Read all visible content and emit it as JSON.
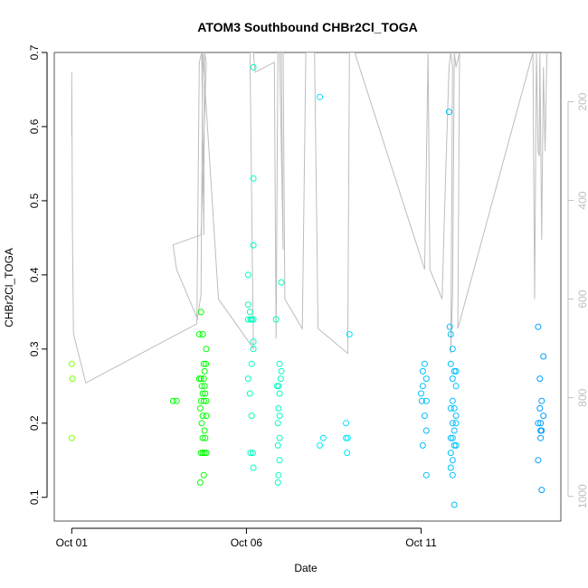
{
  "chart_data": {
    "type": "scatter",
    "title": "ATOM3 Southbound CHBr2Cl_TOGA",
    "xlabel": "Date",
    "ylabel": "CHBr2Cl_TOGA",
    "x_unit": "day of October 2017",
    "xlim": [
      0.5,
      15.0
    ],
    "ylim": [
      0.068,
      0.7
    ],
    "x_ticks": [
      {
        "value": 1,
        "label": "Oct 01"
      },
      {
        "value": 6,
        "label": "Oct 06"
      },
      {
        "value": 11,
        "label": "Oct 11"
      }
    ],
    "y_ticks": [
      0.1,
      0.2,
      0.3,
      0.4,
      0.5,
      0.6,
      0.7
    ],
    "y2_ticks": [
      200,
      400,
      600,
      800,
      1000
    ],
    "y2_lim": [
      1050,
      100
    ],
    "grid": false,
    "legend": "none",
    "colors": {
      "altitude_line": "#bdbdbd",
      "axes": "#555555",
      "point_color_scale": [
        "#7fff00",
        "#00ff00",
        "#00ffbf",
        "#00e5ff",
        "#00bfff",
        "#009fff"
      ]
    },
    "series": [
      {
        "values": [
          [
            1.0,
            0.28
          ],
          [
            1.02,
            0.26
          ],
          [
            1.0,
            0.18
          ],
          [
            3.9,
            0.23
          ],
          [
            4.0,
            0.23
          ],
          [
            4.65,
            0.32
          ],
          [
            4.7,
            0.35
          ],
          [
            4.75,
            0.32
          ],
          [
            4.65,
            0.26
          ],
          [
            4.7,
            0.26
          ],
          [
            4.78,
            0.26
          ],
          [
            4.72,
            0.25
          ],
          [
            4.8,
            0.25
          ],
          [
            4.75,
            0.24
          ],
          [
            4.82,
            0.24
          ],
          [
            4.7,
            0.23
          ],
          [
            4.78,
            0.23
          ],
          [
            4.85,
            0.23
          ],
          [
            4.68,
            0.22
          ],
          [
            4.75,
            0.21
          ],
          [
            4.85,
            0.21
          ],
          [
            4.72,
            0.2
          ],
          [
            4.8,
            0.19
          ],
          [
            4.75,
            0.18
          ],
          [
            4.82,
            0.18
          ],
          [
            4.7,
            0.16
          ],
          [
            4.75,
            0.16
          ],
          [
            4.8,
            0.16
          ],
          [
            4.85,
            0.16
          ],
          [
            4.78,
            0.13
          ],
          [
            4.68,
            0.12
          ],
          [
            4.8,
            0.27
          ],
          [
            4.78,
            0.28
          ],
          [
            4.84,
            0.28
          ],
          [
            4.85,
            0.3
          ],
          [
            6.05,
            0.4
          ],
          [
            6.05,
            0.36
          ],
          [
            6.1,
            0.35
          ],
          [
            6.15,
            0.34
          ],
          [
            6.05,
            0.34
          ],
          [
            6.12,
            0.34
          ],
          [
            6.2,
            0.34
          ],
          [
            6.2,
            0.31
          ],
          [
            6.2,
            0.3
          ],
          [
            6.15,
            0.28
          ],
          [
            6.05,
            0.26
          ],
          [
            6.1,
            0.24
          ],
          [
            6.15,
            0.21
          ],
          [
            6.12,
            0.16
          ],
          [
            6.18,
            0.16
          ],
          [
            6.2,
            0.14
          ],
          [
            6.2,
            0.68
          ],
          [
            6.2,
            0.53
          ],
          [
            6.2,
            0.44
          ],
          [
            6.85,
            0.34
          ],
          [
            6.88,
            0.25
          ],
          [
            6.92,
            0.25
          ],
          [
            6.95,
            0.28
          ],
          [
            7.0,
            0.27
          ],
          [
            6.98,
            0.26
          ],
          [
            6.95,
            0.24
          ],
          [
            6.92,
            0.22
          ],
          [
            6.95,
            0.21
          ],
          [
            6.9,
            0.2
          ],
          [
            6.95,
            0.18
          ],
          [
            6.9,
            0.17
          ],
          [
            6.95,
            0.15
          ],
          [
            6.92,
            0.13
          ],
          [
            6.9,
            0.12
          ],
          [
            7.0,
            0.39
          ],
          [
            8.1,
            0.64
          ],
          [
            8.1,
            0.17
          ],
          [
            8.2,
            0.18
          ],
          [
            8.85,
            0.2
          ],
          [
            8.85,
            0.18
          ],
          [
            8.9,
            0.18
          ],
          [
            8.88,
            0.16
          ],
          [
            8.95,
            0.32
          ]
        ]
      },
      {
        "values": [
          [
            11.05,
            0.27
          ],
          [
            11.1,
            0.28
          ],
          [
            11.15,
            0.26
          ],
          [
            11.05,
            0.25
          ],
          [
            11.0,
            0.24
          ],
          [
            11.02,
            0.23
          ],
          [
            11.15,
            0.23
          ],
          [
            11.1,
            0.21
          ],
          [
            11.15,
            0.19
          ],
          [
            11.05,
            0.17
          ],
          [
            11.15,
            0.13
          ],
          [
            11.8,
            0.62
          ],
          [
            11.82,
            0.33
          ],
          [
            11.85,
            0.32
          ],
          [
            11.9,
            0.3
          ],
          [
            11.85,
            0.28
          ],
          [
            11.95,
            0.27
          ],
          [
            12.0,
            0.27
          ],
          [
            11.9,
            0.26
          ],
          [
            12.0,
            0.25
          ],
          [
            11.9,
            0.23
          ],
          [
            11.95,
            0.22
          ],
          [
            11.85,
            0.22
          ],
          [
            12.0,
            0.21
          ],
          [
            11.9,
            0.2
          ],
          [
            12.0,
            0.2
          ],
          [
            11.95,
            0.19
          ],
          [
            11.85,
            0.18
          ],
          [
            11.9,
            0.18
          ],
          [
            11.95,
            0.17
          ],
          [
            12.0,
            0.17
          ],
          [
            11.85,
            0.16
          ],
          [
            11.9,
            0.15
          ],
          [
            11.85,
            0.14
          ],
          [
            11.9,
            0.13
          ],
          [
            11.95,
            0.09
          ],
          [
            14.35,
            0.33
          ],
          [
            14.5,
            0.29
          ],
          [
            14.4,
            0.26
          ],
          [
            14.45,
            0.23
          ],
          [
            14.4,
            0.22
          ],
          [
            14.35,
            0.2
          ],
          [
            14.42,
            0.2
          ],
          [
            14.5,
            0.21
          ],
          [
            14.42,
            0.19
          ],
          [
            14.45,
            0.19
          ],
          [
            14.42,
            0.18
          ],
          [
            14.35,
            0.15
          ],
          [
            14.45,
            0.11
          ]
        ]
      }
    ],
    "altitude_trace": [
      [
        1.0,
        270
      ],
      [
        1.0,
        140
      ],
      [
        1.02,
        460
      ],
      [
        1.05,
        670
      ],
      [
        1.4,
        770
      ],
      [
        4.58,
        650
      ],
      [
        4.65,
        120
      ],
      [
        4.72,
        100
      ],
      [
        4.78,
        470
      ],
      [
        4.8,
        100
      ],
      [
        4.85,
        120
      ],
      [
        4.7,
        470
      ],
      [
        3.9,
        490
      ],
      [
        4.0,
        540
      ],
      [
        4.6,
        640
      ],
      [
        4.7,
        590
      ],
      [
        4.75,
        100
      ],
      [
        5.2,
        600
      ],
      [
        5.9,
        670
      ],
      [
        6.2,
        700
      ],
      [
        6.1,
        100
      ],
      [
        6.2,
        100
      ],
      [
        6.25,
        140
      ],
      [
        6.8,
        120
      ],
      [
        6.85,
        680
      ],
      [
        6.9,
        100
      ],
      [
        6.95,
        100
      ],
      [
        7.05,
        500
      ],
      [
        7.0,
        100
      ],
      [
        7.05,
        100
      ],
      [
        7.1,
        600
      ],
      [
        7.6,
        660
      ],
      [
        7.7,
        100
      ],
      [
        7.95,
        100
      ],
      [
        8.05,
        660
      ],
      [
        8.9,
        710
      ],
      [
        8.95,
        100
      ],
      [
        9.1,
        100
      ],
      [
        11.1,
        540
      ],
      [
        11.15,
        330
      ],
      [
        11.2,
        100
      ],
      [
        11.25,
        540
      ],
      [
        11.6,
        600
      ],
      [
        11.7,
        350
      ],
      [
        11.8,
        130
      ],
      [
        11.85,
        100
      ],
      [
        11.9,
        130
      ],
      [
        11.85,
        710
      ],
      [
        11.9,
        590
      ],
      [
        11.95,
        100
      ],
      [
        12.0,
        130
      ],
      [
        12.1,
        100
      ],
      [
        12.05,
        660
      ],
      [
        14.2,
        100
      ],
      [
        14.25,
        600
      ],
      [
        14.3,
        100
      ],
      [
        14.35,
        300
      ],
      [
        14.38,
        310
      ],
      [
        14.4,
        100
      ],
      [
        14.45,
        480
      ],
      [
        14.5,
        130
      ],
      [
        14.55,
        300
      ],
      [
        14.6,
        100
      ]
    ]
  }
}
